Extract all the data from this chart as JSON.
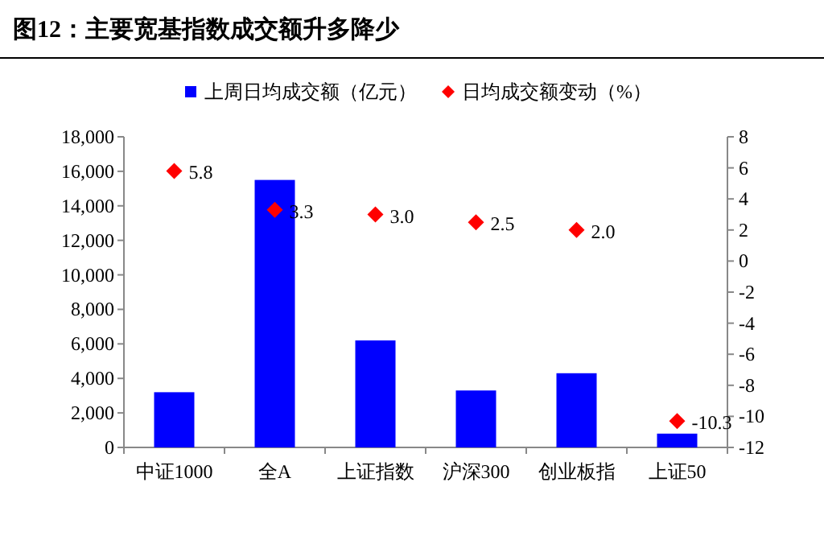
{
  "chart_data": {
    "type": "bar",
    "title": "图12：主要宽基指数成交额升多降少",
    "categories": [
      "中证1000",
      "全A",
      "上证指数",
      "沪深300",
      "创业板指",
      "上证50"
    ],
    "series": [
      {
        "name": "上周日均成交额（亿元）",
        "color": "#0000ff",
        "values": [
          3200,
          15500,
          6200,
          3300,
          4300,
          800
        ]
      },
      {
        "name": "日均成交额变动（%）",
        "type": "scatter",
        "axis": "y2",
        "color": "#ff0000",
        "marker": "diamond",
        "values": [
          5.8,
          3.3,
          3.0,
          2.5,
          2.0,
          -10.3
        ],
        "value_labels": [
          "5.8",
          "3.3",
          "3.0",
          "2.5",
          "2.0",
          "-10.3"
        ]
      }
    ],
    "ylim": [
      0,
      18000
    ],
    "yticks": [
      0,
      {
        "value": 2000,
        "label": "2,000"
      },
      {
        "value": 4000,
        "label": "4,000"
      },
      {
        "value": 6000,
        "label": "6,000"
      },
      {
        "value": 8000,
        "label": "8,000"
      },
      {
        "value": 10000,
        "label": "10,000"
      },
      {
        "value": 12000,
        "label": "12,000"
      },
      {
        "value": 14000,
        "label": "14,000"
      },
      {
        "value": 16000,
        "label": "16,000"
      },
      {
        "value": 18000,
        "label": "18,000"
      }
    ],
    "y2lim": [
      -12,
      8
    ],
    "y2ticks": [
      -12,
      -10,
      -8,
      -6,
      -4,
      -2,
      0,
      2,
      4,
      6,
      8
    ],
    "legend": "top",
    "grid": false
  }
}
